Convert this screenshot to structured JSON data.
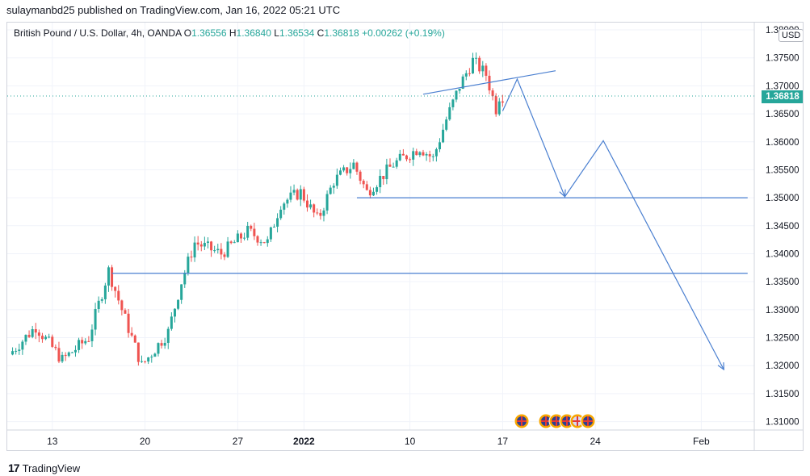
{
  "header": {
    "publisher_line": "sulaymanbd25 published on TradingView.com, Jan 16, 2022 05:21 UTC"
  },
  "legend": {
    "symbol": "British Pound / U.S. Dollar, 4h, OANDA",
    "open_label": "O",
    "open": "1.36556",
    "high_label": "H",
    "high": "1.36840",
    "low_label": "L",
    "low": "1.36534",
    "close_label": "C",
    "close": "1.36818",
    "change": "+0.00262 (+0.19%)"
  },
  "currency": "USD",
  "current_price": "1.36818",
  "footer": {
    "brand": "TradingView",
    "logo": "17"
  },
  "colors": {
    "up": "#26a69a",
    "down": "#ef5350",
    "drawing": "#4a7fd0"
  },
  "chart_data": {
    "type": "candlestick",
    "title": "",
    "y_ticks": [
      "1.31000",
      "1.31500",
      "1.32000",
      "1.32500",
      "1.33000",
      "1.33500",
      "1.34000",
      "1.34500",
      "1.35000",
      "1.35500",
      "1.36000",
      "1.36500",
      "1.37000",
      "1.37500",
      "1.38000"
    ],
    "ylim": [
      1.3085,
      1.3813
    ],
    "x_ticks": [
      {
        "label": "13",
        "day": 13
      },
      {
        "label": "20",
        "day": 20
      },
      {
        "label": "27",
        "day": 27
      },
      {
        "label": "2022",
        "day": 32
      },
      {
        "label": "10",
        "day": 40
      },
      {
        "label": "17",
        "day": 47
      },
      {
        "label": "24",
        "day": 54
      },
      {
        "label": "Feb",
        "day": 62
      }
    ],
    "xlim_days": [
      9.6,
      66.0
    ],
    "key_price_points": [
      {
        "day": 10,
        "price": 1.322
      },
      {
        "day": 12,
        "price": 1.327
      },
      {
        "day": 14,
        "price": 1.321
      },
      {
        "day": 16,
        "price": 1.325
      },
      {
        "day": 17.5,
        "price": 1.337
      },
      {
        "day": 18.5,
        "price": 1.33
      },
      {
        "day": 20,
        "price": 1.32
      },
      {
        "day": 22,
        "price": 1.326
      },
      {
        "day": 23,
        "price": 1.335
      },
      {
        "day": 24,
        "price": 1.342
      },
      {
        "day": 26,
        "price": 1.34
      },
      {
        "day": 28,
        "price": 1.344
      },
      {
        "day": 29.5,
        "price": 1.342
      },
      {
        "day": 30.5,
        "price": 1.349
      },
      {
        "day": 32,
        "price": 1.351
      },
      {
        "day": 33.3,
        "price": 1.346
      },
      {
        "day": 34.5,
        "price": 1.353
      },
      {
        "day": 36,
        "price": 1.356
      },
      {
        "day": 37,
        "price": 1.351
      },
      {
        "day": 39,
        "price": 1.356
      },
      {
        "day": 41,
        "price": 1.359
      },
      {
        "day": 42,
        "price": 1.357
      },
      {
        "day": 43,
        "price": 1.364
      },
      {
        "day": 44,
        "price": 1.37
      },
      {
        "day": 45,
        "price": 1.3745
      },
      {
        "day": 46,
        "price": 1.372
      },
      {
        "day": 46.8,
        "price": 1.3655
      },
      {
        "day": 47,
        "price": 1.3682
      }
    ],
    "drawings": {
      "horizontal_levels": [
        {
          "price": 1.3365,
          "from_day": 17.5,
          "to_day": 65.5
        },
        {
          "price": 1.35,
          "from_day": 36.0,
          "to_day": 65.5
        }
      ],
      "trendline": [
        {
          "day": 41.0,
          "price": 1.3685
        },
        {
          "day": 51.0,
          "price": 1.3727
        }
      ],
      "projected_path": [
        {
          "day": 47.0,
          "price": 1.3655
        },
        {
          "day": 48.1,
          "price": 1.3712
        },
        {
          "day": 51.7,
          "price": 1.3502
        },
        {
          "day": 54.6,
          "price": 1.3602
        },
        {
          "day": 63.7,
          "price": 1.3193
        }
      ]
    },
    "event_markers": [
      "uk-flag-icon",
      "uk-flag-icon",
      "uk-flag-icon",
      "uk-flag-icon",
      "us-flag-icon",
      "uk-flag-icon"
    ]
  }
}
